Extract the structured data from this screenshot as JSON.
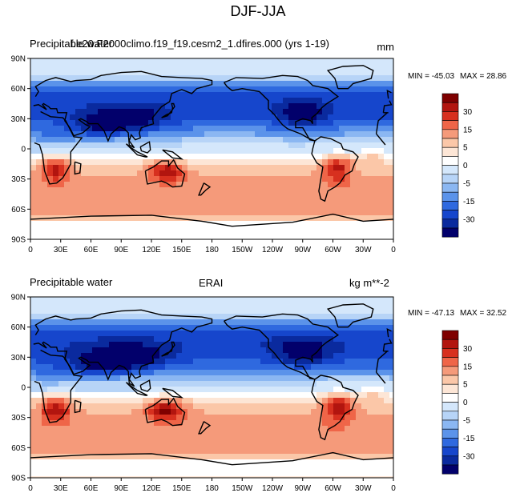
{
  "figure": {
    "title": "DJF-JJA"
  },
  "chart_data": [
    {
      "type": "heatmap",
      "variable_label": "Precipitable water",
      "overlapping_label": "Precipitable water",
      "case_label": "f.e20.F2000climo.f19_f19.cesm2_1.dfires.000 (yrs 1-19)",
      "units": "mm",
      "min_label": "MIN = -45.03",
      "max_label": "MAX =  28.86",
      "min": -45.03,
      "max": 28.86,
      "x_ticks": [
        "0",
        "30E",
        "60E",
        "90E",
        "120E",
        "150E",
        "180",
        "150W",
        "120W",
        "90W",
        "60W",
        "30W",
        "0"
      ],
      "y_ticks": [
        "90N",
        "60N",
        "30N",
        "0",
        "30S",
        "60S",
        "90S"
      ],
      "colorbar_labels": [
        "30",
        "15",
        "5",
        "0",
        "-5",
        "-15",
        "-30"
      ]
    },
    {
      "type": "heatmap",
      "variable_label": "Precipitable water",
      "case_label": "ERAI",
      "units": "kg m**-2",
      "min_label": "MIN = -47.13",
      "max_label": "MAX =  32.52",
      "min": -47.13,
      "max": 32.52,
      "x_ticks": [
        "0",
        "30E",
        "60E",
        "90E",
        "120E",
        "150E",
        "180",
        "150W",
        "120W",
        "90W",
        "60W",
        "30W",
        "0"
      ],
      "y_ticks": [
        "90N",
        "60N",
        "30N",
        "0",
        "30S",
        "60S",
        "90S"
      ],
      "colorbar_labels": [
        "30",
        "15",
        "5",
        "0",
        "-5",
        "-15",
        "-30"
      ]
    }
  ],
  "colors": {
    "scale": [
      "#7f0000",
      "#b2150f",
      "#d7301f",
      "#ef6548",
      "#f59a7a",
      "#fbc7a8",
      "#fde6d6",
      "#ffffff",
      "#d4e7fb",
      "#b7d4f7",
      "#8bb7f2",
      "#5b93ea",
      "#2f69df",
      "#1646cc",
      "#0a2a9e",
      "#02006b"
    ]
  }
}
